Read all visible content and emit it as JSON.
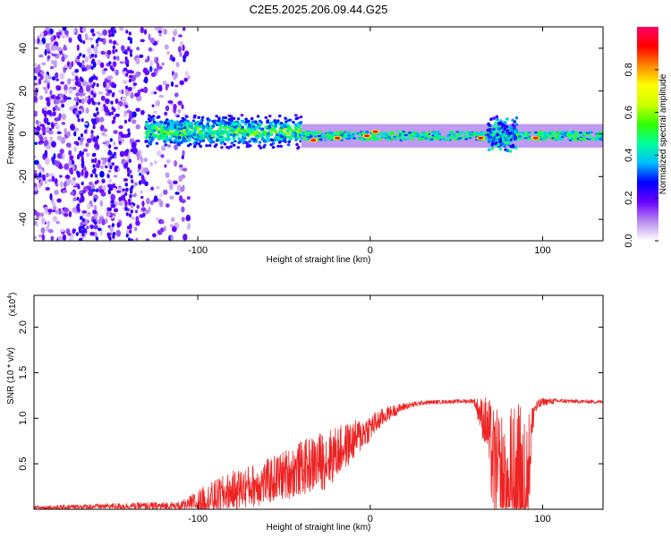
{
  "title": "C2E5.2025.206.09.44.G25",
  "chart_data": [
    {
      "type": "heatmap",
      "xlabel": "Height of straight line (km)",
      "ylabel": "Frequency (Hz)",
      "xlim": [
        -195,
        135
      ],
      "ylim": [
        -50,
        50
      ],
      "xticks": [
        -100,
        0,
        100
      ],
      "xtick_labels": [
        "-100",
        "0",
        "100"
      ],
      "yticks": [
        40,
        20,
        0,
        -20,
        -40
      ],
      "ytick_labels": [
        "40",
        "20",
        "0",
        "-20",
        "-40"
      ],
      "colorbar": {
        "label": "Normalized spectral amplitude",
        "range": [
          0,
          1
        ],
        "ticks": [
          0.0,
          0.2,
          0.4,
          0.6,
          0.8
        ],
        "tick_labels": [
          "0.0",
          "0.2",
          "0.4",
          "0.6",
          "0.8"
        ],
        "colors": [
          "#ffffff",
          "#b88cf0",
          "#6a00ff",
          "#0000ff",
          "#00bfff",
          "#00ff99",
          "#33ff00",
          "#ccff00",
          "#ffff00",
          "#ff8800",
          "#ff0000",
          "#ff0066"
        ]
      },
      "features": [
        {
          "x_range": [
            -195,
            -105
          ],
          "description_level": 0.15
        },
        {
          "x_range": [
            -130,
            -40
          ],
          "y_center": 1,
          "y_halfwidth": 6,
          "level": 0.45
        },
        {
          "x_range": [
            -40,
            135
          ],
          "y_center": -1,
          "y_halfwidth": 2.5,
          "level": 0.4
        },
        {
          "x_range": [
            68,
            85
          ],
          "y_center": 0,
          "y_halfwidth": 9,
          "level": 0.35
        }
      ],
      "hotspots": [
        {
          "x": -33,
          "y": -3
        },
        {
          "x": -19,
          "y": -2
        },
        {
          "x": -2,
          "y": -1
        },
        {
          "x": 3,
          "y": 1
        },
        {
          "x": 64,
          "y": -2
        },
        {
          "x": 96,
          "y": -2
        }
      ]
    },
    {
      "type": "line",
      "xlabel": "Height of straight line (km)",
      "ylabel": "SNR (10 * v/v)",
      "y_multiplier": "(x10^4)",
      "y_multiplier_base": "(x10",
      "y_multiplier_exp": "4",
      "y_multiplier_close": ")",
      "xlim": [
        -195,
        135
      ],
      "ylim": [
        0,
        23500
      ],
      "xticks": [
        -100,
        0,
        100
      ],
      "xtick_labels": [
        "-100",
        "0",
        "100"
      ],
      "yticks": [
        5000,
        10000,
        15000,
        20000
      ],
      "ytick_labels": [
        "0.5",
        "1.0",
        "1.5",
        "2.0"
      ],
      "color": "#ee2222",
      "envelope": {
        "x": [
          -195,
          -150,
          -110,
          -95,
          -80,
          -60,
          -40,
          -25,
          -10,
          0,
          10,
          20,
          30,
          40,
          50,
          60,
          68,
          72,
          78,
          84,
          88,
          92,
          95,
          100,
          110,
          120,
          135
        ],
        "baseline": [
          150,
          350,
          350,
          900,
          2000,
          3000,
          4500,
          5500,
          7500,
          9000,
          10500,
          11300,
          11700,
          11800,
          11850,
          11900,
          9000,
          4000,
          2000,
          1000,
          1500,
          5000,
          11000,
          11800,
          11900,
          11850,
          11800
        ],
        "amplitude": [
          250,
          300,
          500,
          1800,
          2200,
          2500,
          3000,
          3300,
          2200,
          1500,
          800,
          400,
          250,
          200,
          200,
          250,
          3500,
          7000,
          9000,
          11000,
          10000,
          6000,
          900,
          400,
          250,
          200,
          200
        ]
      }
    }
  ]
}
